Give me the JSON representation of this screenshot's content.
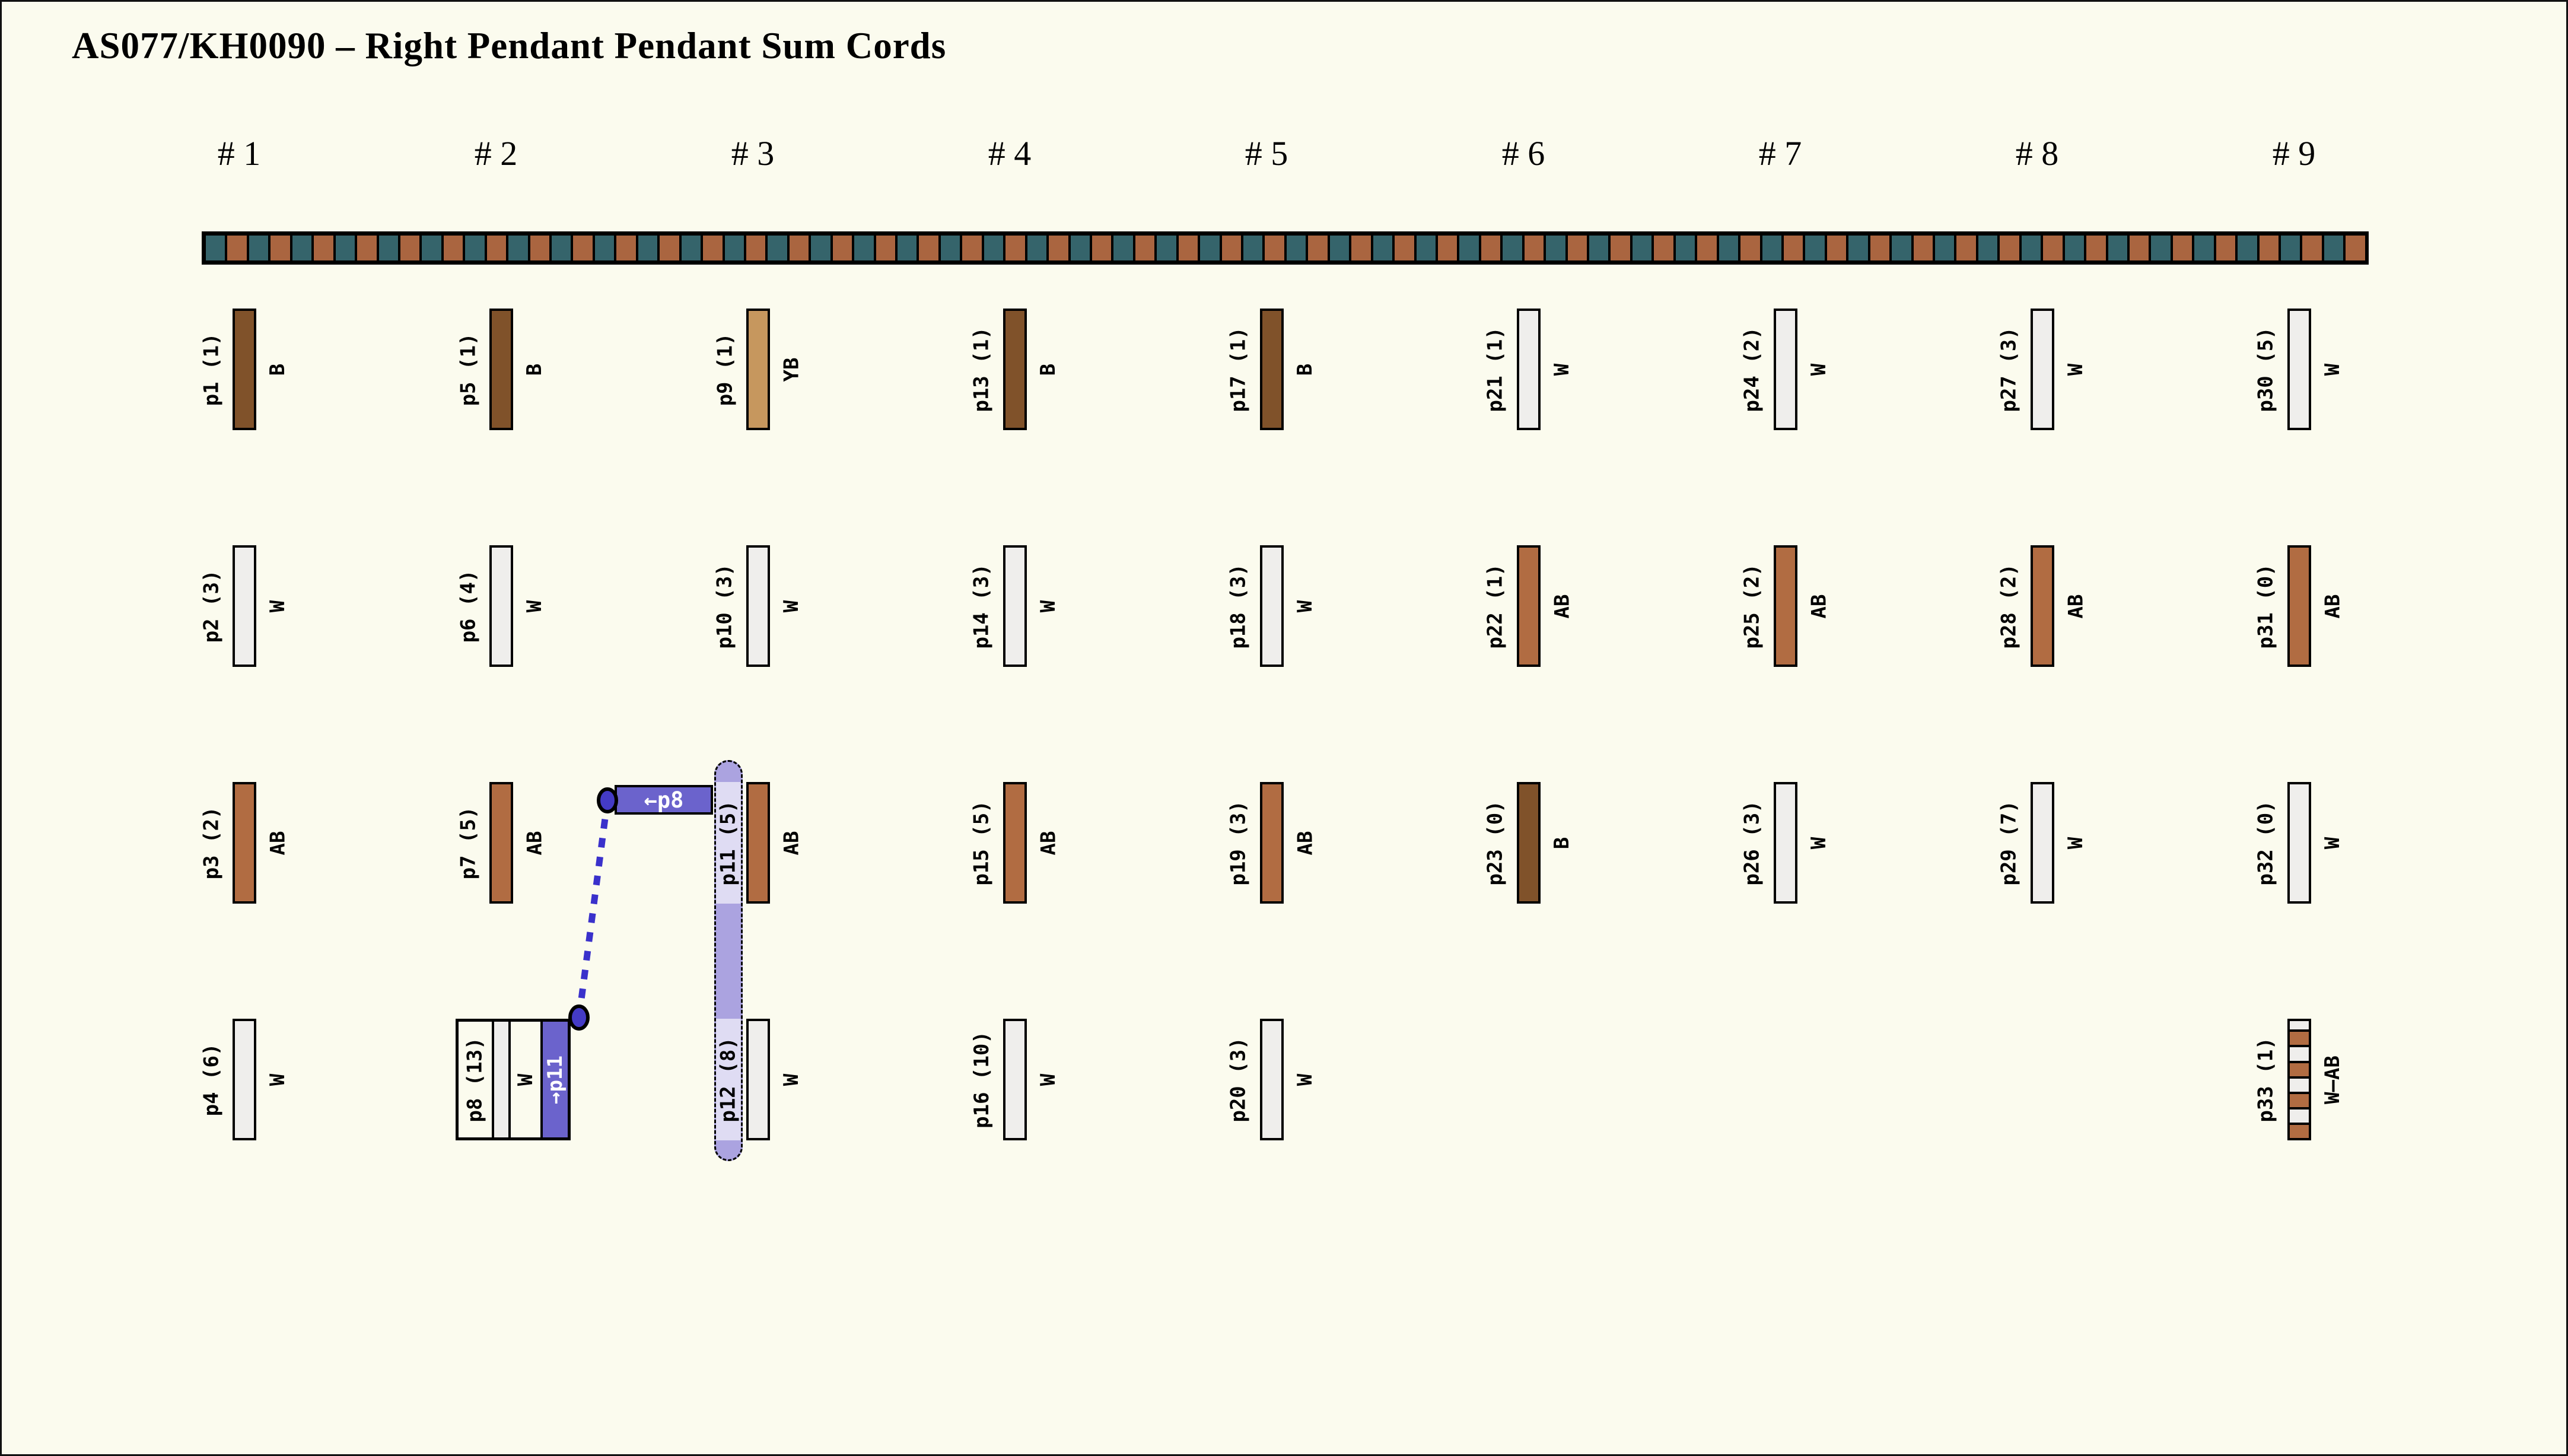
{
  "title": "AS077/KH0090 – Right Pendant Pendant Sum Cords",
  "colors": {
    "background": "#fbfbee",
    "frame": "#111111",
    "primary_teal": "#35646b",
    "primary_brown": "#aa6540",
    "link_purple": "#6b63cc",
    "link_line_blue": "#3a31cb",
    "link_dot_fill": "#443bc6",
    "highlight_capsule": "#aba3e0",
    "highlight_label_bg": "#dfdcf3",
    "code_colors": {
      "B": "#80522a",
      "AB": "#b16c42",
      "YB": "#c6975e",
      "W": "#efeeec"
    }
  },
  "primary_cord": {
    "segment_count": 100
  },
  "link": {
    "from_id": "p8",
    "to_id": "p11",
    "from_tag": "→p11",
    "to_tag": "←p8"
  },
  "groups": [
    {
      "label": "# 1",
      "pendants": [
        {
          "id": "p1",
          "label": "p1 (1)",
          "code": "B",
          "row": 0
        },
        {
          "id": "p2",
          "label": "p2 (3)",
          "code": "W",
          "row": 1
        },
        {
          "id": "p3",
          "label": "p3 (2)",
          "code": "AB",
          "row": 2
        },
        {
          "id": "p4",
          "label": "p4 (6)",
          "code": "W",
          "row": 3
        }
      ]
    },
    {
      "label": "# 2",
      "pendants": [
        {
          "id": "p5",
          "label": "p5 (1)",
          "code": "B",
          "row": 0
        },
        {
          "id": "p6",
          "label": "p6 (4)",
          "code": "W",
          "row": 1
        },
        {
          "id": "p7",
          "label": "p7 (5)",
          "code": "AB",
          "row": 2
        },
        {
          "id": "p8",
          "label": "p8 (13)",
          "code": "W",
          "row": 3,
          "composite": true,
          "link_tag": "→p11"
        }
      ]
    },
    {
      "label": "# 3",
      "pendants": [
        {
          "id": "p9",
          "label": "p9 (1)",
          "code": "YB",
          "row": 0
        },
        {
          "id": "p10",
          "label": "p10 (3)",
          "code": "W",
          "row": 1
        },
        {
          "id": "p11",
          "label": "p11 (5)",
          "code": "AB",
          "row": 2,
          "highlight": true
        },
        {
          "id": "p12",
          "label": "p12 (8)",
          "code": "W",
          "row": 3,
          "highlight": true
        }
      ]
    },
    {
      "label": "# 4",
      "pendants": [
        {
          "id": "p13",
          "label": "p13 (1)",
          "code": "B",
          "row": 0
        },
        {
          "id": "p14",
          "label": "p14 (3)",
          "code": "W",
          "row": 1
        },
        {
          "id": "p15",
          "label": "p15 (5)",
          "code": "AB",
          "row": 2
        },
        {
          "id": "p16",
          "label": "p16 (10)",
          "code": "W",
          "row": 3
        }
      ]
    },
    {
      "label": "# 5",
      "pendants": [
        {
          "id": "p17",
          "label": "p17 (1)",
          "code": "B",
          "row": 0
        },
        {
          "id": "p18",
          "label": "p18 (3)",
          "code": "W",
          "row": 1
        },
        {
          "id": "p19",
          "label": "p19 (3)",
          "code": "AB",
          "row": 2
        },
        {
          "id": "p20",
          "label": "p20 (3)",
          "code": "W",
          "row": 3
        }
      ]
    },
    {
      "label": "# 6",
      "pendants": [
        {
          "id": "p21",
          "label": "p21 (1)",
          "code": "W",
          "row": 0
        },
        {
          "id": "p22",
          "label": "p22 (1)",
          "code": "AB",
          "row": 1
        },
        {
          "id": "p23",
          "label": "p23 (0)",
          "code": "B",
          "row": 2
        }
      ]
    },
    {
      "label": "# 7",
      "pendants": [
        {
          "id": "p24",
          "label": "p24 (2)",
          "code": "W",
          "row": 0
        },
        {
          "id": "p25",
          "label": "p25 (2)",
          "code": "AB",
          "row": 1
        },
        {
          "id": "p26",
          "label": "p26 (3)",
          "code": "W",
          "row": 2
        }
      ]
    },
    {
      "label": "# 8",
      "pendants": [
        {
          "id": "p27",
          "label": "p27 (3)",
          "code": "W",
          "row": 0
        },
        {
          "id": "p28",
          "label": "p28 (2)",
          "code": "AB",
          "row": 1
        },
        {
          "id": "p29",
          "label": "p29 (7)",
          "code": "W",
          "row": 2
        }
      ]
    },
    {
      "label": "# 9",
      "pendants": [
        {
          "id": "p30",
          "label": "p30 (5)",
          "code": "W",
          "row": 0
        },
        {
          "id": "p31",
          "label": "p31 (0)",
          "code": "AB",
          "row": 1
        },
        {
          "id": "p32",
          "label": "p32 (0)",
          "code": "W",
          "row": 2
        },
        {
          "id": "p33",
          "label": "p33 (1)",
          "code": "W–AB",
          "row": 3,
          "striped": [
            "W",
            "AB",
            "W",
            "AB",
            "W",
            "AB",
            "W",
            "AB"
          ]
        }
      ]
    }
  ]
}
